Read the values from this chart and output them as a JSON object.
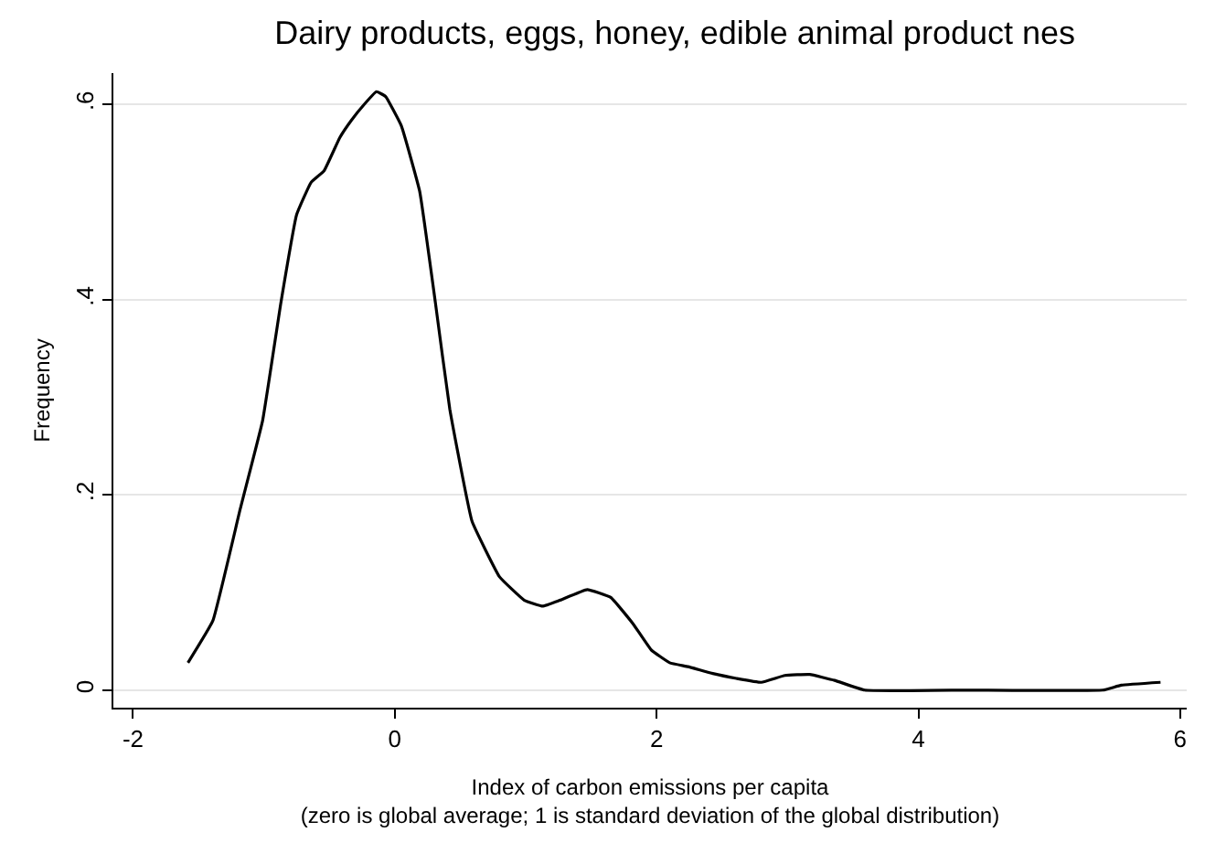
{
  "chart_data": {
    "type": "line",
    "title": "Dairy products, eggs, honey, edible animal product nes",
    "xlabel": "Index of carbon emissions per capita\n(zero is global average; 1 is standard deviation of the global distribution)",
    "ylabel": "Frequency",
    "x": [
      -1.58,
      -1.39,
      -1.18,
      -1.01,
      -0.87,
      -0.75,
      -0.64,
      -0.54,
      -0.42,
      -0.33,
      -0.24,
      -0.14,
      -0.07,
      0.05,
      0.19,
      0.31,
      0.42,
      0.59,
      0.8,
      0.99,
      1.13,
      1.26,
      1.47,
      1.65,
      1.82,
      1.96,
      2.1,
      2.24,
      2.43,
      2.61,
      2.8,
      2.98,
      3.17,
      3.36,
      3.59,
      4.38,
      5.41,
      5.55,
      5.85
    ],
    "series": [
      {
        "color": "#000000",
        "values": [
          0.028,
          0.071,
          0.186,
          0.276,
          0.397,
          0.487,
          0.52,
          0.532,
          0.566,
          0.584,
          0.599,
          0.613,
          0.608,
          0.578,
          0.511,
          0.397,
          0.288,
          0.173,
          0.116,
          0.092,
          0.086,
          0.092,
          0.103,
          0.095,
          0.068,
          0.041,
          0.028,
          0.024,
          0.017,
          0.012,
          0.008,
          0.015,
          0.016,
          0.01,
          0.0,
          0.0,
          0.0,
          0.005,
          0.008
        ]
      }
    ],
    "xlim": [
      -2.15,
      6.05
    ],
    "ylim": [
      -0.018,
      0.632
    ],
    "xticks": [
      -2,
      0,
      2,
      4,
      6
    ],
    "yticks": [
      0,
      {
        "value": 0.2,
        "label": ".2"
      },
      {
        "value": 0.4,
        "label": ".4"
      },
      {
        "value": 0.6,
        "label": ".6"
      }
    ],
    "grid": "y",
    "legend": false,
    "marker": "none",
    "line_style": "solid"
  }
}
